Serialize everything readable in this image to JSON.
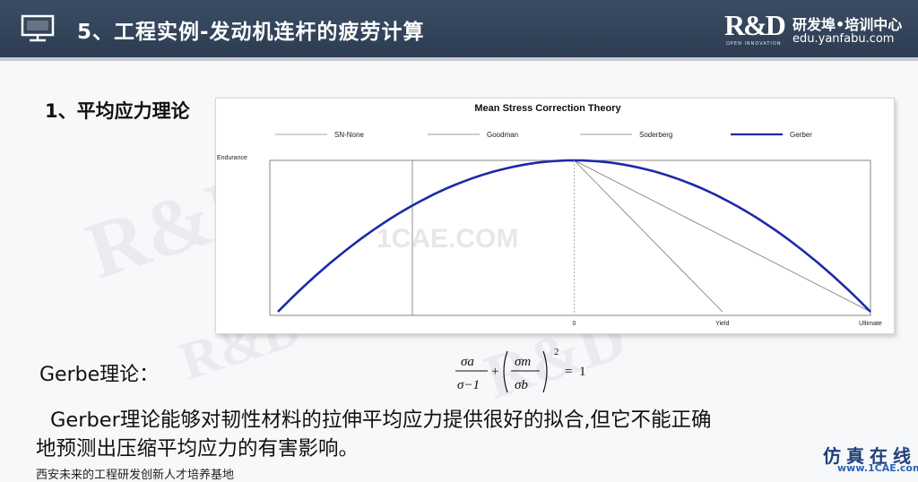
{
  "header": {
    "title": "5、工程实例-发动机连杆的疲劳计算",
    "logo_mark": "R&D",
    "logo_tagline": "OPEN  INNOVATION",
    "logo_name": "研发埠•培训中心",
    "logo_url": "edu.yanfabu.com",
    "background": "#33455b"
  },
  "section": {
    "heading": "1、平均应力理论"
  },
  "chart_data": {
    "type": "line",
    "title": "Mean Stress Correction Theory",
    "legend": [
      "SN-None",
      "Goodman",
      "Soderberg",
      "Gerber"
    ],
    "legend_position": "top",
    "ylabel": "Endurance",
    "x_tick_labels": [
      "0",
      "Yield",
      "Ultimate"
    ],
    "xlim": [
      -1,
      1
    ],
    "ylim": [
      0,
      1
    ],
    "series": [
      {
        "name": "SN-None",
        "color": "#888888",
        "x": [
          -1,
          1
        ],
        "y": [
          1,
          1
        ]
      },
      {
        "name": "Goodman",
        "color": "#777777",
        "x": [
          0,
          1
        ],
        "y": [
          1,
          0
        ]
      },
      {
        "name": "Soderberg",
        "color": "#777777",
        "x": [
          0,
          0.5
        ],
        "y": [
          1,
          0
        ]
      },
      {
        "name": "Gerber",
        "color": "#1c2aa8",
        "x": [
          -1,
          -0.75,
          -0.5,
          -0.25,
          0,
          0.25,
          0.5,
          0.75,
          1
        ],
        "y": [
          0,
          0.4375,
          0.75,
          0.9375,
          1,
          0.9375,
          0.75,
          0.4375,
          0
        ]
      }
    ]
  },
  "theory": {
    "label": "Gerbe理论："
  },
  "formula": {
    "sigma_a": "σa",
    "sigma_minus1": "σ−1",
    "sigma_m": "σm",
    "sigma_b": "σb",
    "exponent": "2",
    "rhs": "1"
  },
  "body": {
    "line1": "Gerber理论能够对韧性材料的拉伸平均应力提供很好的拟合,但它不能正确",
    "line2": "地预测出压缩平均应力的有害影响。"
  },
  "footer": {
    "text": "西安未来的工程研发创新人才培养基地"
  },
  "watermarks": {
    "site": "1CAE.COM",
    "badge_name": "仿真在线",
    "badge_url": "www.1CAE.com"
  }
}
